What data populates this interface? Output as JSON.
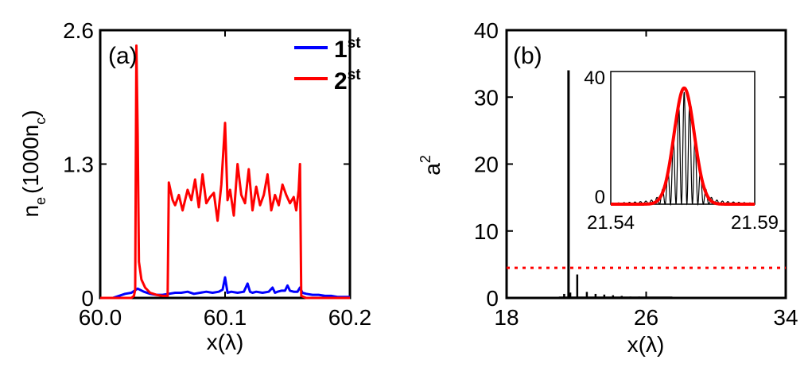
{
  "chart_data": [
    {
      "type": "line",
      "panel_label": "(a)",
      "xlabel": "x(λ)",
      "ylabel": "n",
      "ylabel_sub": "e",
      "ylabel_paren": "(1000n",
      "ylabel_paren_sub": "c",
      "ylabel_close": ")",
      "xlim": [
        60.0,
        60.2
      ],
      "ylim": [
        0,
        2.6
      ],
      "xticks": [
        60.0,
        60.1,
        60.2
      ],
      "xtick_labels": [
        "60.0",
        "60.1",
        "60.2"
      ],
      "yticks": [
        0,
        1.3,
        2.6
      ],
      "ytick_labels": [
        "0",
        "1.3",
        "2.6"
      ],
      "legend_position": "top-right",
      "colors": {
        "series1": "#0000ff",
        "series2": "#ff0000"
      },
      "series": [
        {
          "name": "1",
          "name_sup": "st",
          "color": "#0000ff",
          "x": [
            60.0,
            60.005,
            60.01,
            60.015,
            60.02,
            60.025,
            60.03,
            60.035,
            60.04,
            60.045,
            60.05,
            60.055,
            60.06,
            60.065,
            60.07,
            60.075,
            60.08,
            60.085,
            60.09,
            60.095,
            60.098,
            60.1,
            60.102,
            60.105,
            60.11,
            60.115,
            60.118,
            60.12,
            60.122,
            60.125,
            60.13,
            60.135,
            60.138,
            60.14,
            60.142,
            60.145,
            60.148,
            60.15,
            60.152,
            60.155,
            60.158,
            60.16,
            60.162,
            60.165,
            60.17,
            60.175,
            60.18,
            60.185,
            60.19,
            60.195,
            60.2
          ],
          "y": [
            0.0,
            0.0,
            0.0,
            0.02,
            0.04,
            0.05,
            0.09,
            0.06,
            0.04,
            0.03,
            0.03,
            0.04,
            0.05,
            0.05,
            0.06,
            0.04,
            0.05,
            0.06,
            0.05,
            0.06,
            0.08,
            0.2,
            0.05,
            0.06,
            0.05,
            0.06,
            0.14,
            0.06,
            0.05,
            0.06,
            0.05,
            0.06,
            0.1,
            0.05,
            0.06,
            0.07,
            0.07,
            0.12,
            0.07,
            0.06,
            0.06,
            0.1,
            0.05,
            0.04,
            0.03,
            0.03,
            0.02,
            0.02,
            0.01,
            0.01,
            0.01
          ]
        },
        {
          "name": "2",
          "name_sup": "st",
          "color": "#ff0000",
          "x": [
            60.0,
            60.025,
            60.027,
            60.028,
            60.029,
            60.03,
            60.031,
            60.033,
            60.036,
            60.04,
            60.045,
            60.05,
            60.054,
            60.055,
            60.058,
            60.06,
            60.063,
            60.066,
            60.07,
            60.073,
            60.076,
            60.079,
            60.082,
            60.085,
            60.088,
            60.091,
            60.094,
            60.097,
            60.1,
            60.102,
            60.104,
            60.107,
            60.11,
            60.113,
            60.116,
            60.119,
            60.122,
            60.125,
            60.128,
            60.131,
            60.134,
            60.137,
            60.14,
            60.143,
            60.146,
            60.149,
            60.152,
            60.155,
            60.157,
            60.159,
            60.16,
            60.161,
            60.165,
            60.17,
            60.18,
            60.2
          ],
          "y": [
            0.0,
            0.0,
            0.02,
            0.08,
            2.45,
            1.6,
            0.35,
            0.18,
            0.1,
            0.05,
            0.03,
            0.02,
            0.02,
            1.12,
            0.95,
            0.9,
            1.0,
            0.85,
            1.05,
            0.95,
            1.15,
            0.88,
            1.2,
            0.92,
            0.98,
            1.02,
            0.75,
            1.1,
            1.7,
            0.95,
            1.05,
            0.8,
            1.3,
            1.0,
            0.92,
            1.25,
            0.85,
            1.08,
            0.9,
            1.0,
            1.2,
            0.85,
            1.0,
            0.9,
            1.1,
            1.0,
            0.92,
            0.98,
            0.85,
            1.05,
            1.3,
            0.02,
            0.0,
            0.0,
            0.0,
            0.0
          ]
        }
      ]
    },
    {
      "type": "line",
      "panel_label": "(b)",
      "xlabel": "x(λ)",
      "ylabel": "a",
      "ylabel_sup": "2",
      "xlim": [
        18,
        34
      ],
      "ylim": [
        0,
        40
      ],
      "xticks": [
        18,
        26,
        34
      ],
      "xtick_labels": [
        "18",
        "26",
        "34"
      ],
      "yticks": [
        0,
        10,
        20,
        30,
        40
      ],
      "ytick_labels": [
        "0",
        "10",
        "20",
        "30",
        "40"
      ],
      "colors": {
        "signal": "#000000",
        "threshold": "#ff0000"
      },
      "threshold_line": {
        "y": 4.5,
        "style": "dotted",
        "color": "#ff0000"
      },
      "spikes": {
        "x": [
          21.3,
          21.55,
          21.65,
          22.05,
          22.6,
          23.1,
          23.6,
          24.1,
          24.6,
          25.1,
          25.6,
          26.1,
          26.6
        ],
        "y": [
          0.6,
          34.0,
          0.8,
          3.5,
          0.9,
          0.6,
          0.5,
          0.4,
          0.3,
          0.2,
          0.2,
          0.1,
          0.1
        ]
      },
      "inset": {
        "xlim": [
          21.54,
          21.59
        ],
        "ylim": [
          0,
          40
        ],
        "xtick_labels": [
          "21.54",
          "21.59"
        ],
        "ytick_labels": [
          "0",
          "40"
        ],
        "envelope": {
          "color": "#ff0000",
          "center": 21.5655,
          "peak": 35,
          "sigma": 0.0035
        },
        "oscillation": {
          "color": "#000000",
          "center": 21.5655,
          "peak": 31,
          "sigma": 0.0035,
          "period": 0.0019
        }
      }
    }
  ]
}
